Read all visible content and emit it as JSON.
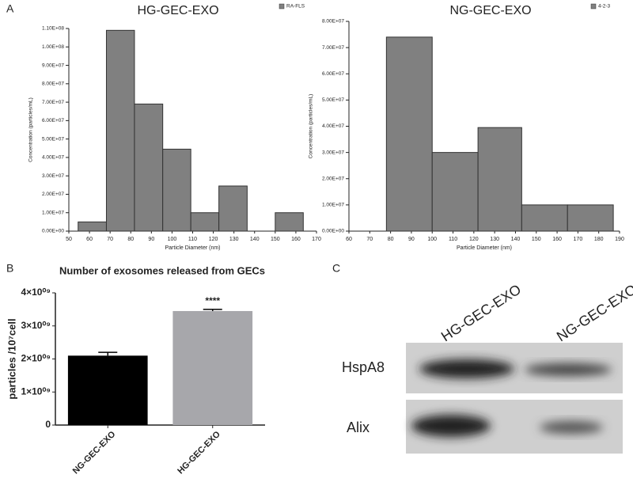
{
  "chart_data": [
    {
      "type": "histogram",
      "panel_label": "A",
      "title": "HG-GEC-EXO",
      "x_label": "Particle Diameter (nm)",
      "y_label": "Concentration (particles/mL)",
      "bins": [
        54.5,
        68.2,
        81.8,
        95.5,
        109.1,
        122.7,
        136.4,
        150,
        163.6
      ],
      "series": [
        {
          "name": "RA-FLS",
          "color": "#808080",
          "values": [
            5000000,
            109000000,
            69000000,
            44500000,
            10000000,
            24500000,
            null,
            10000000
          ]
        }
      ],
      "xlim": [
        50,
        170
      ],
      "xticks": [
        50,
        60,
        70,
        80,
        90,
        100,
        110,
        120,
        130,
        140,
        150,
        160,
        170
      ],
      "ylim": [
        0,
        110000000
      ],
      "yticks": [
        {
          "value": 0,
          "label": "0.00E+00"
        },
        {
          "value": 10000000,
          "label": "1.00E+07"
        },
        {
          "value": 20000000,
          "label": "2.00E+07"
        },
        {
          "value": 30000000,
          "label": "3.00E+07"
        },
        {
          "value": 40000000,
          "label": "4.00E+07"
        },
        {
          "value": 50000000,
          "label": "5.00E+07"
        },
        {
          "value": 60000000,
          "label": "6.00E+07"
        },
        {
          "value": 70000000,
          "label": "7.00E+07"
        },
        {
          "value": 80000000,
          "label": "8.00E+07"
        },
        {
          "value": 90000000,
          "label": "9.00E+07"
        },
        {
          "value": 100000000,
          "label": "1.00E+08"
        },
        {
          "value": 110000000,
          "label": "1.10E+08"
        }
      ]
    },
    {
      "type": "histogram",
      "title": "NG-GEC-EXO",
      "x_label": "Particle Diameter (nm)",
      "y_label": "Concentration (particles/mL)",
      "bins": [
        78,
        100,
        122,
        143,
        165,
        187
      ],
      "series": [
        {
          "name": "4-2-3",
          "color": "#808080",
          "values": [
            74000000,
            30000000,
            39500000,
            10000000,
            10000000
          ]
        }
      ],
      "xlim": [
        60,
        190
      ],
      "xticks": [
        60,
        70,
        80,
        90,
        100,
        110,
        120,
        130,
        140,
        150,
        160,
        170,
        180,
        190
      ],
      "ylim": [
        0,
        80000000
      ],
      "yticks": [
        {
          "value": 0,
          "label": "0.00E+00"
        },
        {
          "value": 10000000,
          "label": "1.00E+07"
        },
        {
          "value": 20000000,
          "label": "2.00E+07"
        },
        {
          "value": 30000000,
          "label": "3.00E+07"
        },
        {
          "value": 40000000,
          "label": "4.00E+07"
        },
        {
          "value": 50000000,
          "label": "5.00E+07"
        },
        {
          "value": 60000000,
          "label": "6.00E+07"
        },
        {
          "value": 70000000,
          "label": "7.00E+07"
        },
        {
          "value": 80000000,
          "label": "8.00E+07"
        }
      ]
    },
    {
      "type": "bar",
      "panel_label": "B",
      "title": "Number of  exosomes released from GECs",
      "y_label": "particles /10⁷cell",
      "categories": [
        "NG-GEC-EXO",
        "HG-GEC-EXO"
      ],
      "values": [
        2100000000,
        3450000000
      ],
      "errors": [
        100000000,
        50000000
      ],
      "colors": [
        "#000000",
        "#a7a7ab"
      ],
      "annotation": "****",
      "ylim": [
        0,
        4000000000
      ],
      "yticks": [
        0,
        {
          "value": 1000000000,
          "label": "1×10⁰⁹"
        },
        {
          "value": 2000000000,
          "label": "2×10⁰⁹"
        },
        {
          "value": 3000000000,
          "label": "3×10⁰⁹"
        },
        {
          "value": 4000000000,
          "label": "4×10⁰⁹"
        }
      ]
    }
  ],
  "blot": {
    "panel_label": "C",
    "lanes": [
      "HG-GEC-EXO",
      "NG-GEC-EXO"
    ],
    "rows": [
      "HspA8",
      "Alix"
    ]
  }
}
